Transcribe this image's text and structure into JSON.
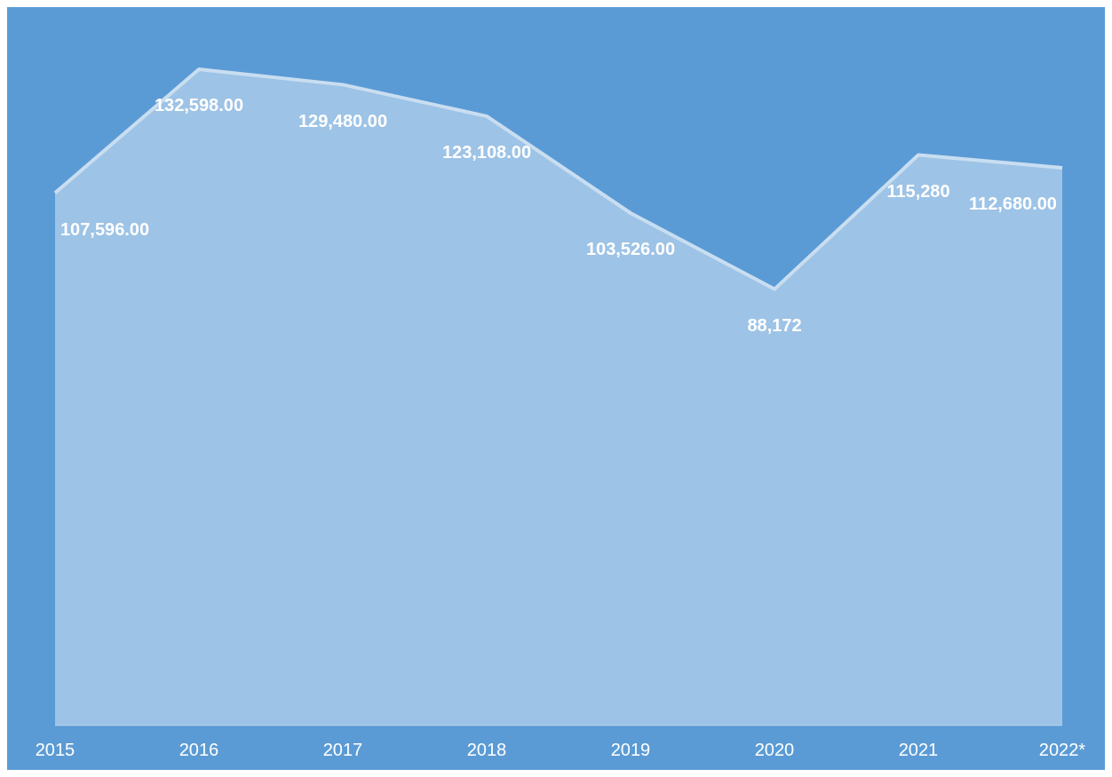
{
  "chart_data": {
    "type": "area",
    "categories": [
      "2015",
      "2016",
      "2017",
      "2018",
      "2019",
      "2020",
      "2021",
      "2022*"
    ],
    "series": [
      {
        "color": "#c9def1",
        "values": [
          107596,
          132598,
          129480,
          123108,
          103526,
          88172,
          115280,
          112680
        ],
        "value_labels": [
          "107,596.00",
          "132,598.00",
          "129,480.00",
          "123,108.00",
          "103,526.00",
          "88,172",
          "115,280",
          "112,680.00"
        ]
      }
    ],
    "grid": false,
    "legend": false
  }
}
